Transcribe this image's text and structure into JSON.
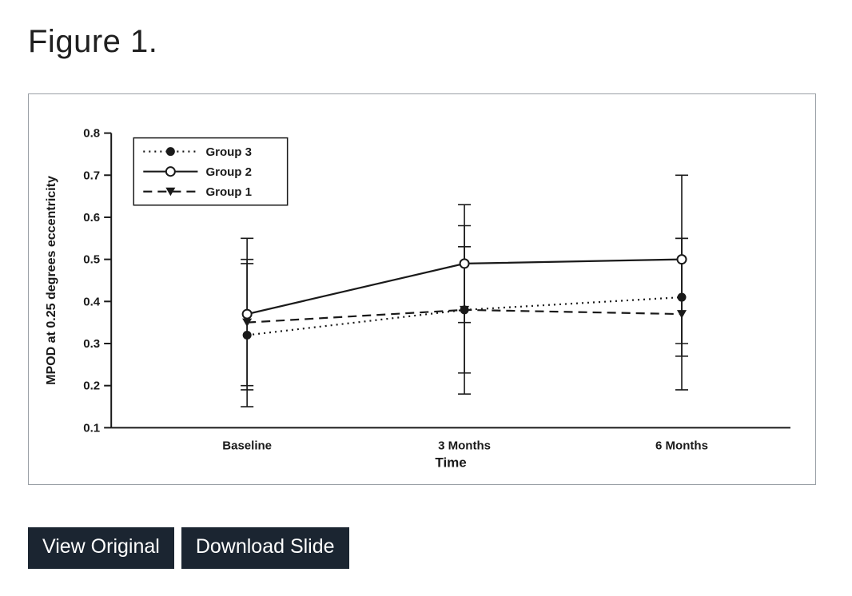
{
  "figure": {
    "title": "Figure 1."
  },
  "actions": {
    "view_original": "View Original",
    "download_slide": "Download Slide"
  },
  "colors": {
    "button_bg": "#1b2531",
    "button_text": "#ffffff",
    "chart_ink": "#1a1a1a",
    "box_border": "#9aa0a6"
  },
  "chart_data": {
    "type": "line",
    "title": "",
    "xlabel": "Time",
    "ylabel": "MPOD at 0.25 degrees eccentricity",
    "categories": [
      "Baseline",
      "3 Months",
      "6 Months"
    ],
    "ylim": [
      0.1,
      0.8
    ],
    "yticks": [
      0.1,
      0.2,
      0.3,
      0.4,
      0.5,
      0.6,
      0.7,
      0.8
    ],
    "grid": false,
    "legend_position": "top-left",
    "series": [
      {
        "name": "Group 3",
        "line": "dotted",
        "marker": "filled-circle",
        "values": [
          0.32,
          0.38,
          0.41
        ],
        "err_low": [
          0.15,
          0.18,
          0.27
        ],
        "err_high": [
          0.49,
          0.58,
          0.55
        ]
      },
      {
        "name": "Group 2",
        "line": "solid",
        "marker": "open-circle",
        "values": [
          0.37,
          0.49,
          0.5
        ],
        "err_low": [
          0.19,
          0.35,
          0.3
        ],
        "err_high": [
          0.55,
          0.63,
          0.7
        ]
      },
      {
        "name": "Group 1",
        "line": "dashed",
        "marker": "filled-triangle",
        "values": [
          0.35,
          0.38,
          0.37
        ],
        "err_low": [
          0.2,
          0.23,
          0.19
        ],
        "err_high": [
          0.5,
          0.53,
          0.55
        ]
      }
    ]
  }
}
